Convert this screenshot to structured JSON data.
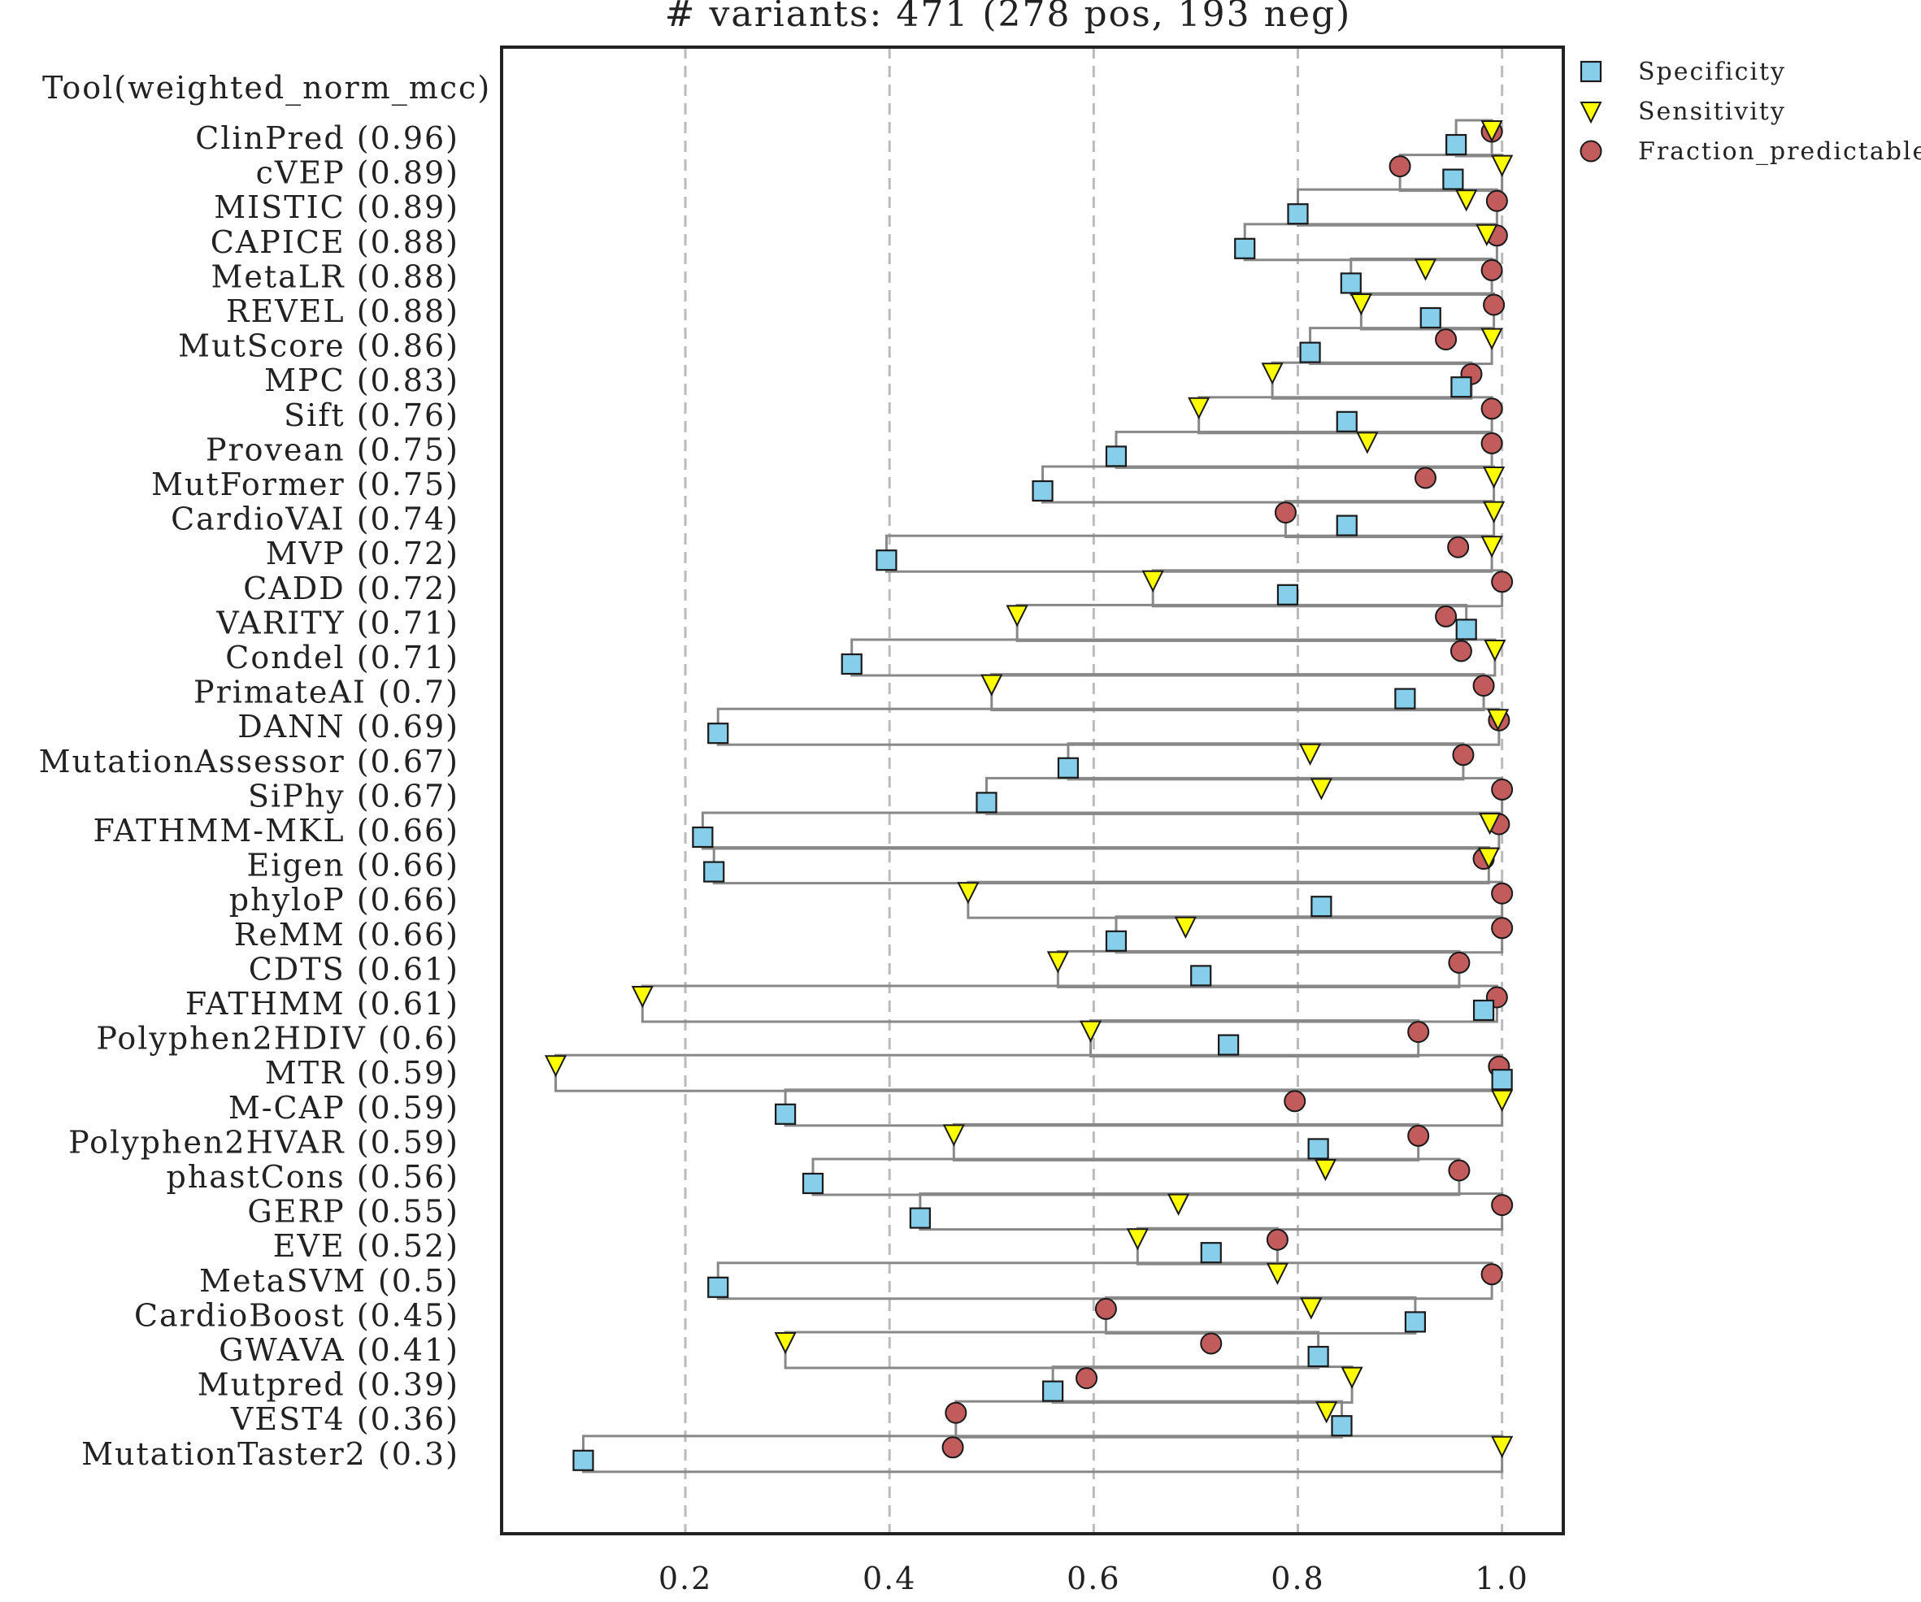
{
  "chart_data": {
    "type": "scatter",
    "title": "# variants: 471 (278 pos, 193 neg)",
    "column_header": "Tool(weighted_norm_mcc)",
    "xlim": [
      0.02,
      1.06
    ],
    "x_ticks": [
      0.2,
      0.4,
      0.6,
      0.8,
      1.0
    ],
    "x_tick_labels": [
      "0.2",
      "0.4",
      "0.6",
      "0.8",
      "1.0"
    ],
    "grid": "vertical-dashed",
    "legend_position": "top-right-outside",
    "series": [
      {
        "name": "Specificity",
        "marker": "square",
        "color": "#87ceeb"
      },
      {
        "name": "Sensitivity",
        "marker": "triangle-down",
        "color": "#ffff00"
      },
      {
        "name": "Fraction_predictable",
        "marker": "circle",
        "color": "#c25b5b"
      }
    ],
    "tools": [
      {
        "label": "ClinPred (0.96)",
        "specificity": 0.955,
        "sensitivity": 0.99,
        "fraction_predictable": 0.99
      },
      {
        "label": "cVEP (0.89)",
        "specificity": 0.952,
        "sensitivity": 1.0,
        "fraction_predictable": 0.9
      },
      {
        "label": "MISTIC (0.89)",
        "specificity": 0.8,
        "sensitivity": 0.965,
        "fraction_predictable": 0.995
      },
      {
        "label": "CAPICE (0.88)",
        "specificity": 0.748,
        "sensitivity": 0.985,
        "fraction_predictable": 0.995
      },
      {
        "label": "MetaLR (0.88)",
        "specificity": 0.852,
        "sensitivity": 0.925,
        "fraction_predictable": 0.99
      },
      {
        "label": "REVEL (0.88)",
        "specificity": 0.93,
        "sensitivity": 0.862,
        "fraction_predictable": 0.992
      },
      {
        "label": "MutScore (0.86)",
        "specificity": 0.812,
        "sensitivity": 0.99,
        "fraction_predictable": 0.945
      },
      {
        "label": "MPC (0.83)",
        "specificity": 0.96,
        "sensitivity": 0.775,
        "fraction_predictable": 0.97
      },
      {
        "label": "Sift (0.76)",
        "specificity": 0.848,
        "sensitivity": 0.703,
        "fraction_predictable": 0.99
      },
      {
        "label": "Provean (0.75)",
        "specificity": 0.622,
        "sensitivity": 0.868,
        "fraction_predictable": 0.99
      },
      {
        "label": "MutFormer (0.75)",
        "specificity": 0.55,
        "sensitivity": 0.992,
        "fraction_predictable": 0.925
      },
      {
        "label": "CardioVAI (0.74)",
        "specificity": 0.848,
        "sensitivity": 0.992,
        "fraction_predictable": 0.788
      },
      {
        "label": "MVP (0.72)",
        "specificity": 0.397,
        "sensitivity": 0.99,
        "fraction_predictable": 0.957
      },
      {
        "label": "CADD (0.72)",
        "specificity": 0.79,
        "sensitivity": 0.658,
        "fraction_predictable": 1.0
      },
      {
        "label": "VARITY (0.71)",
        "specificity": 0.965,
        "sensitivity": 0.525,
        "fraction_predictable": 0.945
      },
      {
        "label": "Condel (0.71)",
        "specificity": 0.363,
        "sensitivity": 0.993,
        "fraction_predictable": 0.96
      },
      {
        "label": "PrimateAI (0.7)",
        "specificity": 0.905,
        "sensitivity": 0.5,
        "fraction_predictable": 0.982
      },
      {
        "label": "DANN (0.69)",
        "specificity": 0.232,
        "sensitivity": 0.996,
        "fraction_predictable": 0.997
      },
      {
        "label": "MutationAssessor (0.67)",
        "specificity": 0.575,
        "sensitivity": 0.812,
        "fraction_predictable": 0.962
      },
      {
        "label": "SiPhy (0.67)",
        "specificity": 0.495,
        "sensitivity": 0.823,
        "fraction_predictable": 1.0
      },
      {
        "label": "FATHMM-MKL (0.66)",
        "specificity": 0.217,
        "sensitivity": 0.988,
        "fraction_predictable": 0.997
      },
      {
        "label": "Eigen (0.66)",
        "specificity": 0.228,
        "sensitivity": 0.987,
        "fraction_predictable": 0.982
      },
      {
        "label": "phyloP (0.66)",
        "specificity": 0.823,
        "sensitivity": 0.477,
        "fraction_predictable": 1.0
      },
      {
        "label": "ReMM (0.66)",
        "specificity": 0.622,
        "sensitivity": 0.69,
        "fraction_predictable": 1.0
      },
      {
        "label": "CDTS (0.61)",
        "specificity": 0.705,
        "sensitivity": 0.565,
        "fraction_predictable": 0.958
      },
      {
        "label": "FATHMM (0.61)",
        "specificity": 0.982,
        "sensitivity": 0.158,
        "fraction_predictable": 0.995
      },
      {
        "label": "Polyphen2HDIV (0.6)",
        "specificity": 0.732,
        "sensitivity": 0.597,
        "fraction_predictable": 0.918
      },
      {
        "label": "MTR (0.59)",
        "specificity": 1.0,
        "sensitivity": 0.073,
        "fraction_predictable": 0.997
      },
      {
        "label": "M-CAP (0.59)",
        "specificity": 0.298,
        "sensitivity": 1.0,
        "fraction_predictable": 0.797
      },
      {
        "label": "Polyphen2HVAR (0.59)",
        "specificity": 0.82,
        "sensitivity": 0.463,
        "fraction_predictable": 0.918
      },
      {
        "label": "phastCons (0.56)",
        "specificity": 0.325,
        "sensitivity": 0.827,
        "fraction_predictable": 0.958
      },
      {
        "label": "GERP (0.55)",
        "specificity": 0.43,
        "sensitivity": 0.683,
        "fraction_predictable": 1.0
      },
      {
        "label": "EVE (0.52)",
        "specificity": 0.715,
        "sensitivity": 0.643,
        "fraction_predictable": 0.78
      },
      {
        "label": "MetaSVM (0.5)",
        "specificity": 0.232,
        "sensitivity": 0.78,
        "fraction_predictable": 0.99
      },
      {
        "label": "CardioBoost (0.45)",
        "specificity": 0.915,
        "sensitivity": 0.813,
        "fraction_predictable": 0.612
      },
      {
        "label": "GWAVA (0.41)",
        "specificity": 0.82,
        "sensitivity": 0.298,
        "fraction_predictable": 0.715
      },
      {
        "label": "Mutpred (0.39)",
        "specificity": 0.56,
        "sensitivity": 0.853,
        "fraction_predictable": 0.593
      },
      {
        "label": "VEST4 (0.36)",
        "specificity": 0.843,
        "sensitivity": 0.828,
        "fraction_predictable": 0.465
      },
      {
        "label": "MutationTaster2 (0.3)",
        "specificity": 0.1,
        "sensitivity": 1.0,
        "fraction_predictable": 0.462
      }
    ]
  }
}
